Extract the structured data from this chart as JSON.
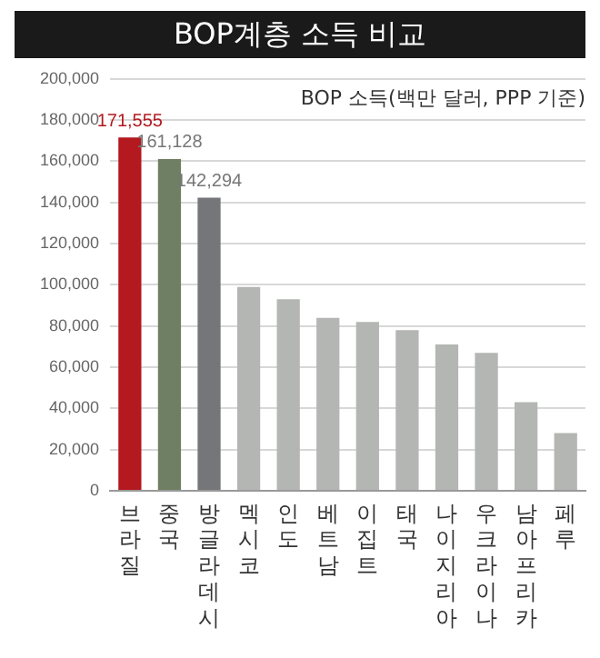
{
  "chart_data": {
    "type": "bar",
    "title": "BOP계층 소득 비교",
    "annotations": [
      "BOP 소득(백만 달러, PPP 기준)"
    ],
    "categories": [
      "브라질",
      "중국",
      "방글라데시",
      "멕시코",
      "인도",
      "베트남",
      "이집트",
      "태국",
      "나이지리아",
      "우크라이나",
      "남아프리카",
      "페루"
    ],
    "values": [
      171555,
      161128,
      142294,
      99000,
      93000,
      84000,
      82000,
      78000,
      71000,
      67000,
      43000,
      28000
    ],
    "colors": [
      "#b3191f",
      "#6f7f63",
      "#75767a",
      "#b4b6b3",
      "#b4b6b3",
      "#b4b6b3",
      "#b4b6b3",
      "#b4b6b3",
      "#b4b6b3",
      "#b4b6b3",
      "#b4b6b3",
      "#b4b6b3"
    ],
    "value_labels": [
      "171,555",
      "161,128",
      "142,294",
      null,
      null,
      null,
      null,
      null,
      null,
      null,
      null,
      null
    ],
    "ylim": [
      0,
      200000
    ],
    "yticks": [
      {
        "value": 0,
        "label": "0"
      },
      {
        "value": 20000,
        "label": "20,000"
      },
      {
        "value": 40000,
        "label": "40,000"
      },
      {
        "value": 60000,
        "label": "60,000"
      },
      {
        "value": 80000,
        "label": "80,000"
      },
      {
        "value": 100000,
        "label": "100,000"
      },
      {
        "value": 120000,
        "label": "120,000"
      },
      {
        "value": 140000,
        "label": "140,000"
      },
      {
        "value": 160000,
        "label": "160,000"
      },
      {
        "value": 180000,
        "label": "180,000"
      },
      {
        "value": 200000,
        "label": "200,000"
      }
    ],
    "grid": "y",
    "legend": false
  }
}
